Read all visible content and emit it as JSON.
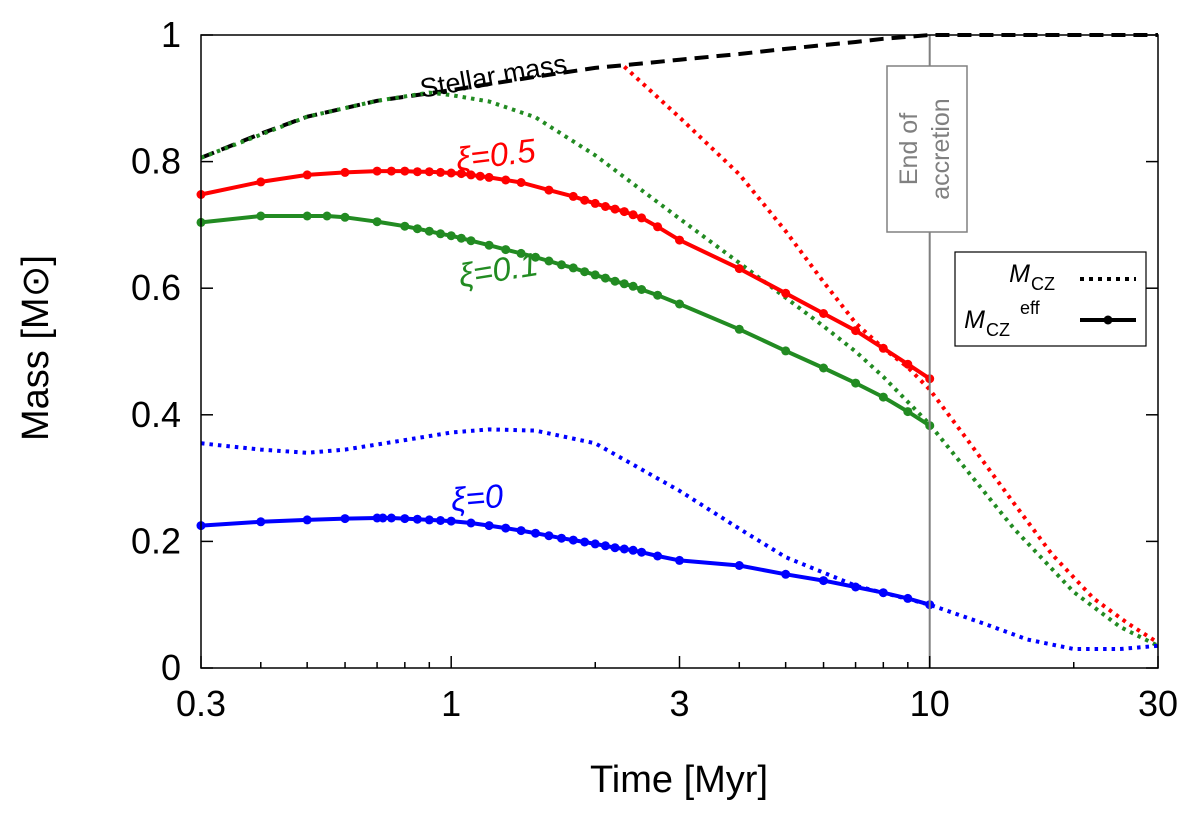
{
  "chart_data": {
    "type": "line",
    "xscale": "log",
    "xlim": [
      0.3,
      30
    ],
    "ylim": [
      0,
      1
    ],
    "xlabel": "Time [Myr]",
    "ylabel": "Mass [M⊙]",
    "x_ticks": [
      0.3,
      1,
      3,
      10,
      30
    ],
    "x_tick_labels": [
      "0.3",
      "1",
      "3",
      "10",
      "30"
    ],
    "y_ticks": [
      0,
      0.2,
      0.4,
      0.6,
      0.8,
      1
    ],
    "y_tick_labels": [
      "0",
      "0.2",
      "0.4",
      "0.6",
      "0.8",
      "1"
    ],
    "colors": {
      "red": "#ff0000",
      "green": "#228b22",
      "blue": "#0000ff",
      "black": "#000000",
      "gray": "#808080"
    },
    "annotations": {
      "stellar_mass": "Stellar mass",
      "xi05": "ξ=0.5",
      "xi01": "ξ=0.1",
      "xi0": "ξ=0",
      "end_line1": "End of",
      "end_line2": "accretion",
      "end_of_accretion_time": 10
    },
    "legend": {
      "position": "right",
      "entries": [
        {
          "symbol": "M",
          "sub": "CZ",
          "sup": "",
          "style": "dotted"
        },
        {
          "symbol": "M",
          "sub": "CZ",
          "sup": "eff",
          "style": "solid-markers"
        }
      ]
    },
    "series": [
      {
        "name": "Stellar mass",
        "style": "dashed",
        "color": "#000000",
        "x": [
          0.3,
          0.4,
          0.5,
          0.7,
          1.0,
          1.5,
          2.0,
          2.5,
          3,
          4,
          5,
          6,
          7,
          8,
          10,
          30
        ],
        "y": [
          0.806,
          0.844,
          0.871,
          0.896,
          0.913,
          0.934,
          0.948,
          0.955,
          0.961,
          0.97,
          0.978,
          0.984,
          0.989,
          0.994,
          1.0,
          1.0
        ]
      },
      {
        "name": "MCZ xi=0.5",
        "style": "dotted",
        "color": "#ff0000",
        "x": [
          2.3,
          3,
          4,
          5,
          6,
          7,
          8,
          9,
          10,
          12,
          15,
          18,
          22,
          26,
          30
        ],
        "y": [
          0.95,
          0.87,
          0.78,
          0.69,
          0.61,
          0.545,
          0.505,
          0.475,
          0.44,
          0.36,
          0.26,
          0.18,
          0.11,
          0.07,
          0.04
        ]
      },
      {
        "name": "MCZ xi=0.1",
        "style": "dotted",
        "color": "#228b22",
        "x": [
          0.3,
          0.5,
          0.7,
          0.9,
          1.0,
          1.2,
          1.5,
          2,
          3,
          4,
          5,
          6,
          7,
          8,
          10,
          15,
          20,
          25,
          30
        ],
        "y": [
          0.806,
          0.871,
          0.896,
          0.909,
          0.905,
          0.895,
          0.87,
          0.81,
          0.71,
          0.64,
          0.585,
          0.54,
          0.5,
          0.46,
          0.385,
          0.22,
          0.12,
          0.065,
          0.035
        ]
      },
      {
        "name": "MCZ xi=0",
        "style": "dotted",
        "color": "#0000ff",
        "x": [
          0.3,
          0.4,
          0.5,
          0.6,
          0.8,
          1.0,
          1.2,
          1.5,
          2,
          3,
          4,
          5,
          7,
          10,
          13,
          16,
          20,
          25,
          30
        ],
        "y": [
          0.355,
          0.345,
          0.34,
          0.345,
          0.36,
          0.372,
          0.377,
          0.375,
          0.355,
          0.28,
          0.22,
          0.175,
          0.13,
          0.1,
          0.07,
          0.045,
          0.03,
          0.03,
          0.035
        ]
      },
      {
        "name": "MCZ eff xi=0.5",
        "style": "solid-markers",
        "color": "#ff0000",
        "x": [
          0.3,
          0.4,
          0.5,
          0.6,
          0.7,
          0.75,
          0.8,
          0.85,
          0.9,
          0.95,
          1.0,
          1.05,
          1.1,
          1.15,
          1.2,
          1.3,
          1.4,
          1.6,
          1.8,
          1.9,
          2.0,
          2.1,
          2.2,
          2.3,
          2.4,
          2.5,
          2.7,
          3.0,
          4.0,
          5.0,
          6.0,
          7.0,
          8.0,
          9.0,
          10.0
        ],
        "y": [
          0.748,
          0.768,
          0.779,
          0.783,
          0.785,
          0.785,
          0.785,
          0.784,
          0.784,
          0.783,
          0.782,
          0.781,
          0.779,
          0.777,
          0.775,
          0.771,
          0.767,
          0.755,
          0.745,
          0.739,
          0.734,
          0.729,
          0.725,
          0.721,
          0.716,
          0.711,
          0.697,
          0.676,
          0.631,
          0.592,
          0.56,
          0.533,
          0.505,
          0.48,
          0.457
        ]
      },
      {
        "name": "MCZ eff xi=0.1",
        "style": "solid-markers",
        "color": "#228b22",
        "x": [
          0.3,
          0.4,
          0.5,
          0.55,
          0.6,
          0.7,
          0.8,
          0.85,
          0.9,
          0.95,
          1.0,
          1.05,
          1.1,
          1.2,
          1.3,
          1.4,
          1.5,
          1.6,
          1.7,
          1.8,
          1.9,
          2.0,
          2.1,
          2.2,
          2.3,
          2.4,
          2.5,
          2.7,
          3.0,
          4.0,
          5.0,
          6.0,
          7.0,
          8.0,
          9.0,
          10.0
        ],
        "y": [
          0.704,
          0.714,
          0.714,
          0.714,
          0.712,
          0.705,
          0.698,
          0.694,
          0.69,
          0.686,
          0.683,
          0.679,
          0.675,
          0.668,
          0.661,
          0.655,
          0.649,
          0.643,
          0.637,
          0.632,
          0.626,
          0.621,
          0.616,
          0.611,
          0.607,
          0.603,
          0.598,
          0.589,
          0.575,
          0.535,
          0.501,
          0.474,
          0.45,
          0.428,
          0.405,
          0.383
        ]
      },
      {
        "name": "MCZ eff xi=0",
        "style": "solid-markers",
        "color": "#0000ff",
        "x": [
          0.3,
          0.4,
          0.5,
          0.6,
          0.7,
          0.72,
          0.75,
          0.8,
          0.85,
          0.9,
          0.95,
          1.0,
          1.1,
          1.2,
          1.3,
          1.4,
          1.5,
          1.6,
          1.7,
          1.8,
          1.9,
          2.0,
          2.1,
          2.2,
          2.3,
          2.4,
          2.5,
          2.7,
          3.0,
          4.0,
          5.0,
          6.0,
          7.0,
          8.0,
          9.0,
          10.0
        ],
        "y": [
          0.225,
          0.231,
          0.234,
          0.236,
          0.237,
          0.237,
          0.237,
          0.236,
          0.235,
          0.234,
          0.233,
          0.232,
          0.229,
          0.225,
          0.221,
          0.217,
          0.213,
          0.209,
          0.205,
          0.202,
          0.199,
          0.196,
          0.193,
          0.19,
          0.188,
          0.186,
          0.183,
          0.177,
          0.17,
          0.162,
          0.148,
          0.138,
          0.128,
          0.119,
          0.11,
          0.1
        ]
      }
    ]
  }
}
